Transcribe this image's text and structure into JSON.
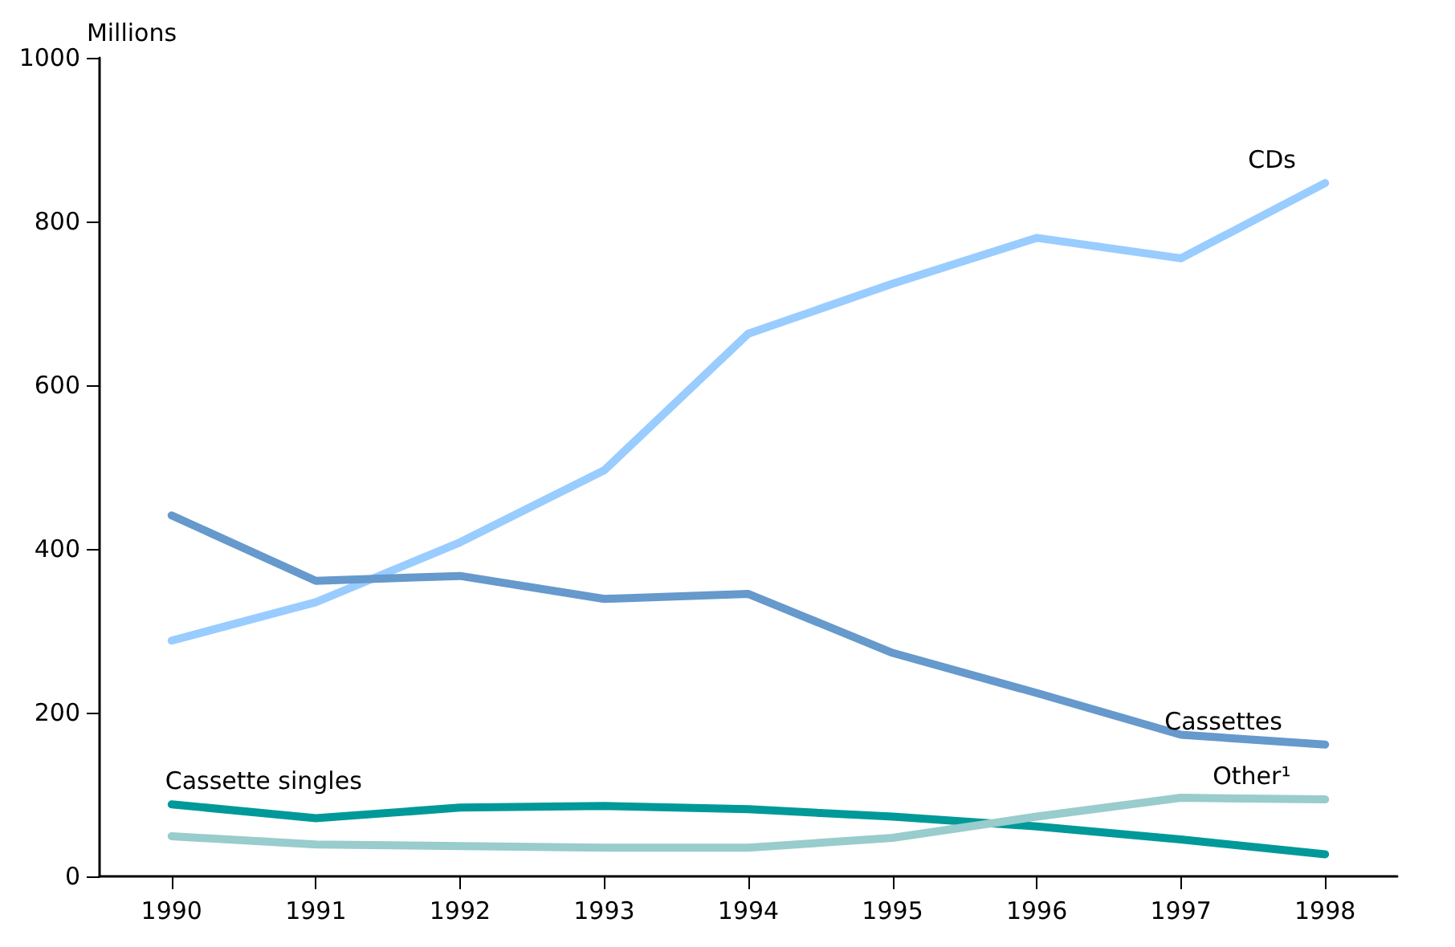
{
  "chart_data": {
    "type": "line",
    "ylabel": "Millions",
    "categories": [
      "1990",
      "1991",
      "1992",
      "1993",
      "1994",
      "1995",
      "1996",
      "1997",
      "1998"
    ],
    "ylim": [
      0,
      1000
    ],
    "yticks": [
      0,
      200,
      400,
      600,
      800,
      1000
    ],
    "grid": false,
    "legend": false,
    "marker": "none",
    "line_style": "solid",
    "series": [
      {
        "name": "CDs",
        "color": "#99ccff",
        "values": [
          288,
          335,
          408,
          496,
          663,
          724,
          780,
          755,
          847
        ]
      },
      {
        "name": "Cassettes",
        "color": "#6699cc",
        "values": [
          441,
          361,
          367,
          339,
          345,
          273,
          224,
          173,
          161
        ]
      },
      {
        "name": "Cassette singles",
        "color": "#009999",
        "values": [
          88,
          71,
          84,
          86,
          82,
          73,
          61,
          45,
          27
        ]
      },
      {
        "name": "Other¹",
        "color": "#99cccc",
        "values": [
          49,
          39,
          37,
          35,
          35,
          47,
          73,
          96,
          94
        ]
      }
    ]
  }
}
